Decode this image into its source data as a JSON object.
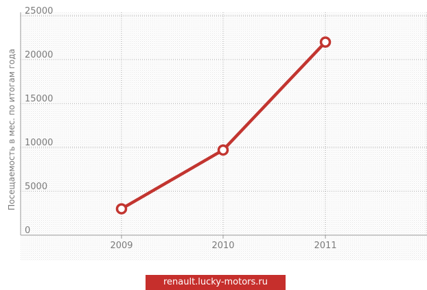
{
  "chart_data": {
    "type": "line",
    "title": "",
    "xlabel": "",
    "ylabel": "Посещаемость в мес. по итогам года",
    "categories": [
      "2009",
      "2010",
      "2011"
    ],
    "series": [
      {
        "values": [
          3000,
          9700,
          22000
        ]
      }
    ],
    "ylim": [
      0,
      25000
    ],
    "yticks": [
      0,
      5000,
      10000,
      15000,
      20000,
      25000
    ],
    "grid": true,
    "line_color": "#c23530",
    "marker_fill": "#ffffff",
    "background_pattern": "dotted-light-gray"
  },
  "footer": {
    "source_label": "renault.lucky-motors.ru"
  }
}
